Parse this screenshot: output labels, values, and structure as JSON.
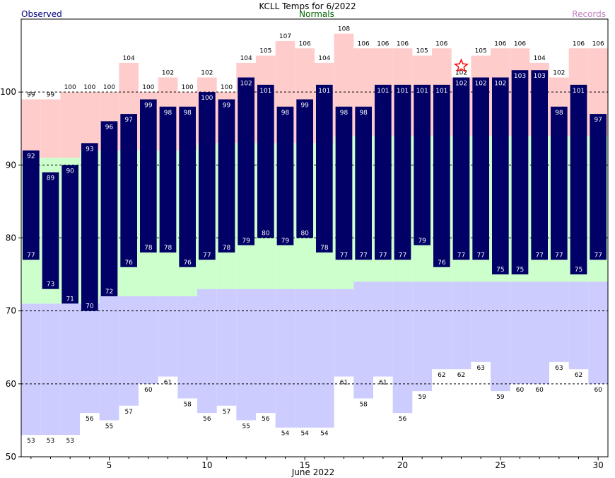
{
  "chart_data": {
    "type": "bar",
    "title": "KCLL Temps for 6/2022",
    "legend": {
      "observed": "Observed",
      "normals": "Normals",
      "records": "Records"
    },
    "xlabel": "June 2022",
    "ylim": [
      50,
      110
    ],
    "xlim": [
      0.5,
      30.5
    ],
    "y_ticks": [
      50,
      60,
      70,
      80,
      90,
      100
    ],
    "x_ticks": [
      5,
      10,
      15,
      20,
      25,
      30
    ],
    "grid": "dashed horizontal at y ticks",
    "days": [
      1,
      2,
      3,
      4,
      5,
      6,
      7,
      8,
      9,
      10,
      11,
      12,
      13,
      14,
      15,
      16,
      17,
      18,
      19,
      20,
      21,
      22,
      23,
      24,
      25,
      26,
      27,
      28,
      29,
      30
    ],
    "observed_high": [
      92,
      89,
      90,
      93,
      96,
      97,
      99,
      98,
      98,
      100,
      99,
      102,
      101,
      98,
      99,
      101,
      98,
      98,
      101,
      101,
      101,
      101,
      102,
      102,
      102,
      103,
      103,
      98,
      101,
      97
    ],
    "observed_low": [
      77,
      73,
      71,
      70,
      72,
      76,
      78,
      78,
      76,
      77,
      78,
      79,
      80,
      79,
      80,
      78,
      77,
      77,
      77,
      77,
      79,
      76,
      77,
      77,
      75,
      75,
      77,
      77,
      75,
      77
    ],
    "normal_high": [
      91,
      91,
      91,
      92,
      92,
      92,
      92,
      92,
      92,
      93,
      93,
      93,
      93,
      93,
      93,
      93,
      94,
      94,
      94,
      94,
      94,
      94,
      94,
      94,
      94,
      94,
      94,
      94,
      94,
      94
    ],
    "normal_low": [
      71,
      71,
      71,
      71,
      72,
      72,
      72,
      72,
      72,
      73,
      73,
      73,
      73,
      73,
      73,
      73,
      73,
      74,
      74,
      74,
      74,
      74,
      74,
      74,
      74,
      74,
      74,
      74,
      74,
      74
    ],
    "record_high": [
      99,
      99,
      100,
      100,
      100,
      104,
      100,
      102,
      100,
      102,
      100,
      104,
      105,
      107,
      106,
      104,
      108,
      106,
      106,
      106,
      105,
      106,
      102,
      105,
      106,
      106,
      104,
      102,
      106,
      106
    ],
    "record_low": [
      53,
      53,
      53,
      56,
      55,
      57,
      60,
      61,
      58,
      56,
      57,
      55,
      56,
      54,
      54,
      54,
      61,
      58,
      61,
      56,
      59,
      62,
      62,
      63,
      59,
      60,
      60,
      63,
      62,
      60
    ],
    "record_set_day": 23,
    "colors": {
      "observed": "#000066",
      "observed_labels": "#ffffff",
      "normals": "#ccffcc",
      "record_high_band": "#ffcccc",
      "record_low_band": "#ccccff",
      "record_star": "#ff0000",
      "grid": "#000000"
    }
  }
}
